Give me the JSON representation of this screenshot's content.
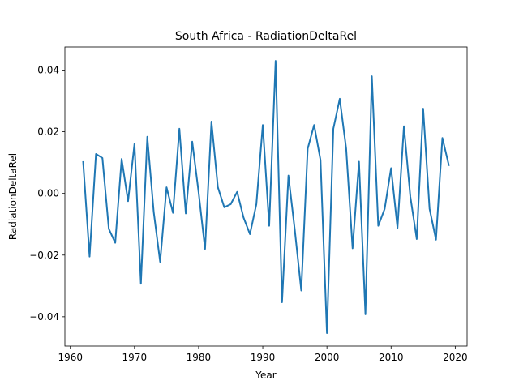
{
  "chart_data": {
    "type": "line",
    "title": "South Africa - RadiationDeltaRel",
    "xlabel": "Year",
    "ylabel": "RadiationDeltaRel",
    "xlim": [
      1959.15,
      2021.85
    ],
    "ylim": [
      -0.0495,
      0.0475
    ],
    "x_ticks": [
      1960,
      1970,
      1980,
      1990,
      2000,
      2010,
      2020
    ],
    "x_tick_labels": [
      "1960",
      "1970",
      "1980",
      "1990",
      "2000",
      "2010",
      "2020"
    ],
    "y_ticks": [
      -0.04,
      -0.02,
      0.0,
      0.02,
      0.04
    ],
    "y_tick_labels": [
      "−0.04",
      "−0.02",
      "0.00",
      "0.02",
      "0.04"
    ],
    "grid": false,
    "series": [
      {
        "name": "RadiationDeltaRel",
        "color": "#1f77b4",
        "x": [
          1962,
          1963,
          1964,
          1965,
          1966,
          1967,
          1968,
          1969,
          1970,
          1971,
          1972,
          1973,
          1974,
          1975,
          1976,
          1977,
          1978,
          1979,
          1980,
          1981,
          1982,
          1983,
          1984,
          1985,
          1986,
          1987,
          1988,
          1989,
          1990,
          1991,
          1992,
          1993,
          1994,
          1995,
          1996,
          1997,
          1998,
          1999,
          2000,
          2001,
          2002,
          2003,
          2004,
          2005,
          2006,
          2007,
          2008,
          2009,
          2010,
          2011,
          2012,
          2013,
          2014,
          2015,
          2016,
          2017,
          2018,
          2019
        ],
        "values": [
          0.0102,
          -0.0205,
          0.0128,
          0.0115,
          -0.0115,
          -0.016,
          0.0112,
          -0.0025,
          0.0161,
          -0.0293,
          0.0184,
          -0.006,
          -0.0222,
          0.002,
          -0.0063,
          0.021,
          -0.0065,
          0.0168,
          0.0003,
          -0.018,
          0.0233,
          0.002,
          -0.0045,
          -0.0035,
          0.0005,
          -0.0078,
          -0.0132,
          -0.0035,
          0.0222,
          -0.0105,
          0.043,
          -0.0353,
          0.0058,
          -0.012,
          -0.0315,
          0.0145,
          0.0222,
          0.0108,
          -0.0453,
          0.021,
          0.0307,
          0.0145,
          -0.0178,
          0.0103,
          -0.0392,
          0.038,
          -0.0105,
          -0.005,
          0.0082,
          -0.0112,
          0.0218,
          -0.001,
          -0.0148,
          0.0275,
          -0.005,
          -0.015,
          0.018,
          0.0092
        ]
      }
    ]
  }
}
